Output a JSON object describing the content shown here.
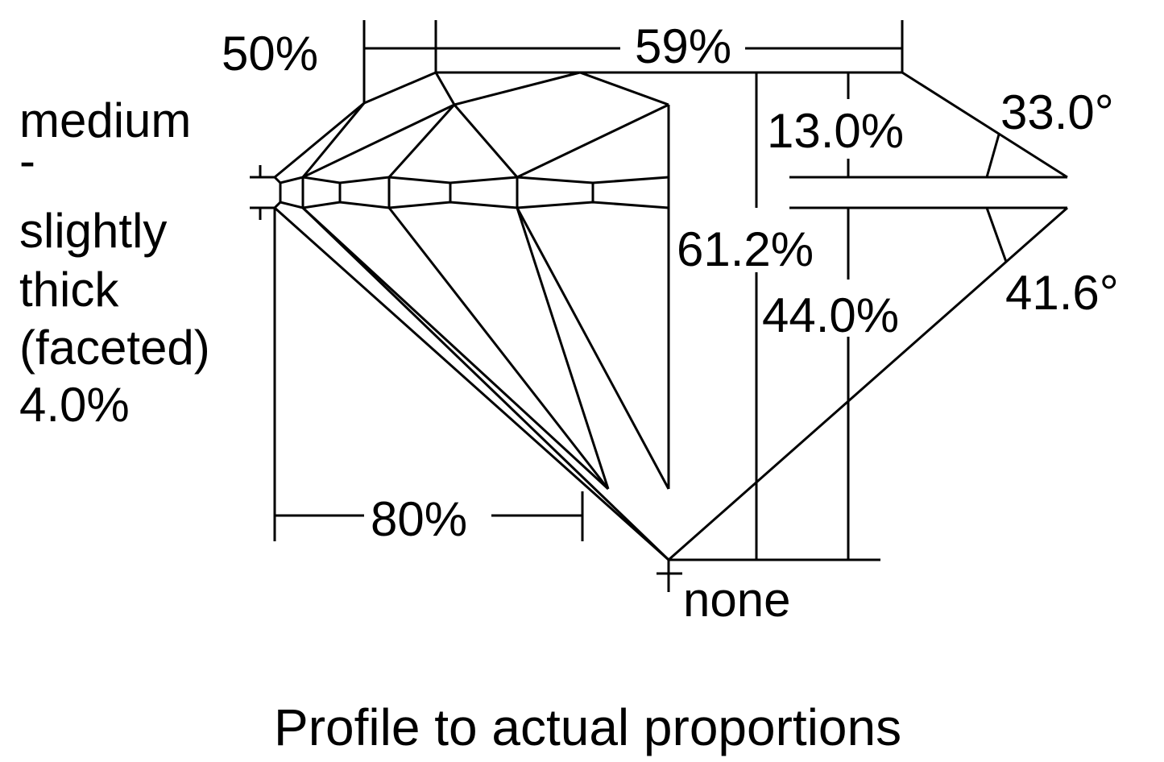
{
  "labels": {
    "crown_height_star": "50%",
    "table": "59%",
    "crown_height": "13.0%",
    "crown_angle": "33.0°",
    "total_depth": "61.2%",
    "pavilion_depth": "44.0%",
    "pavilion_angle": "41.6°",
    "lower_half": "80%",
    "culet": "none"
  },
  "girdle": {
    "lines": [
      "medium",
      "-",
      "slightly",
      "thick",
      "(faceted)",
      "4.0%"
    ]
  },
  "caption": "Profile to actual proportions",
  "colors": {
    "stroke": "#000000",
    "background": "#ffffff"
  }
}
